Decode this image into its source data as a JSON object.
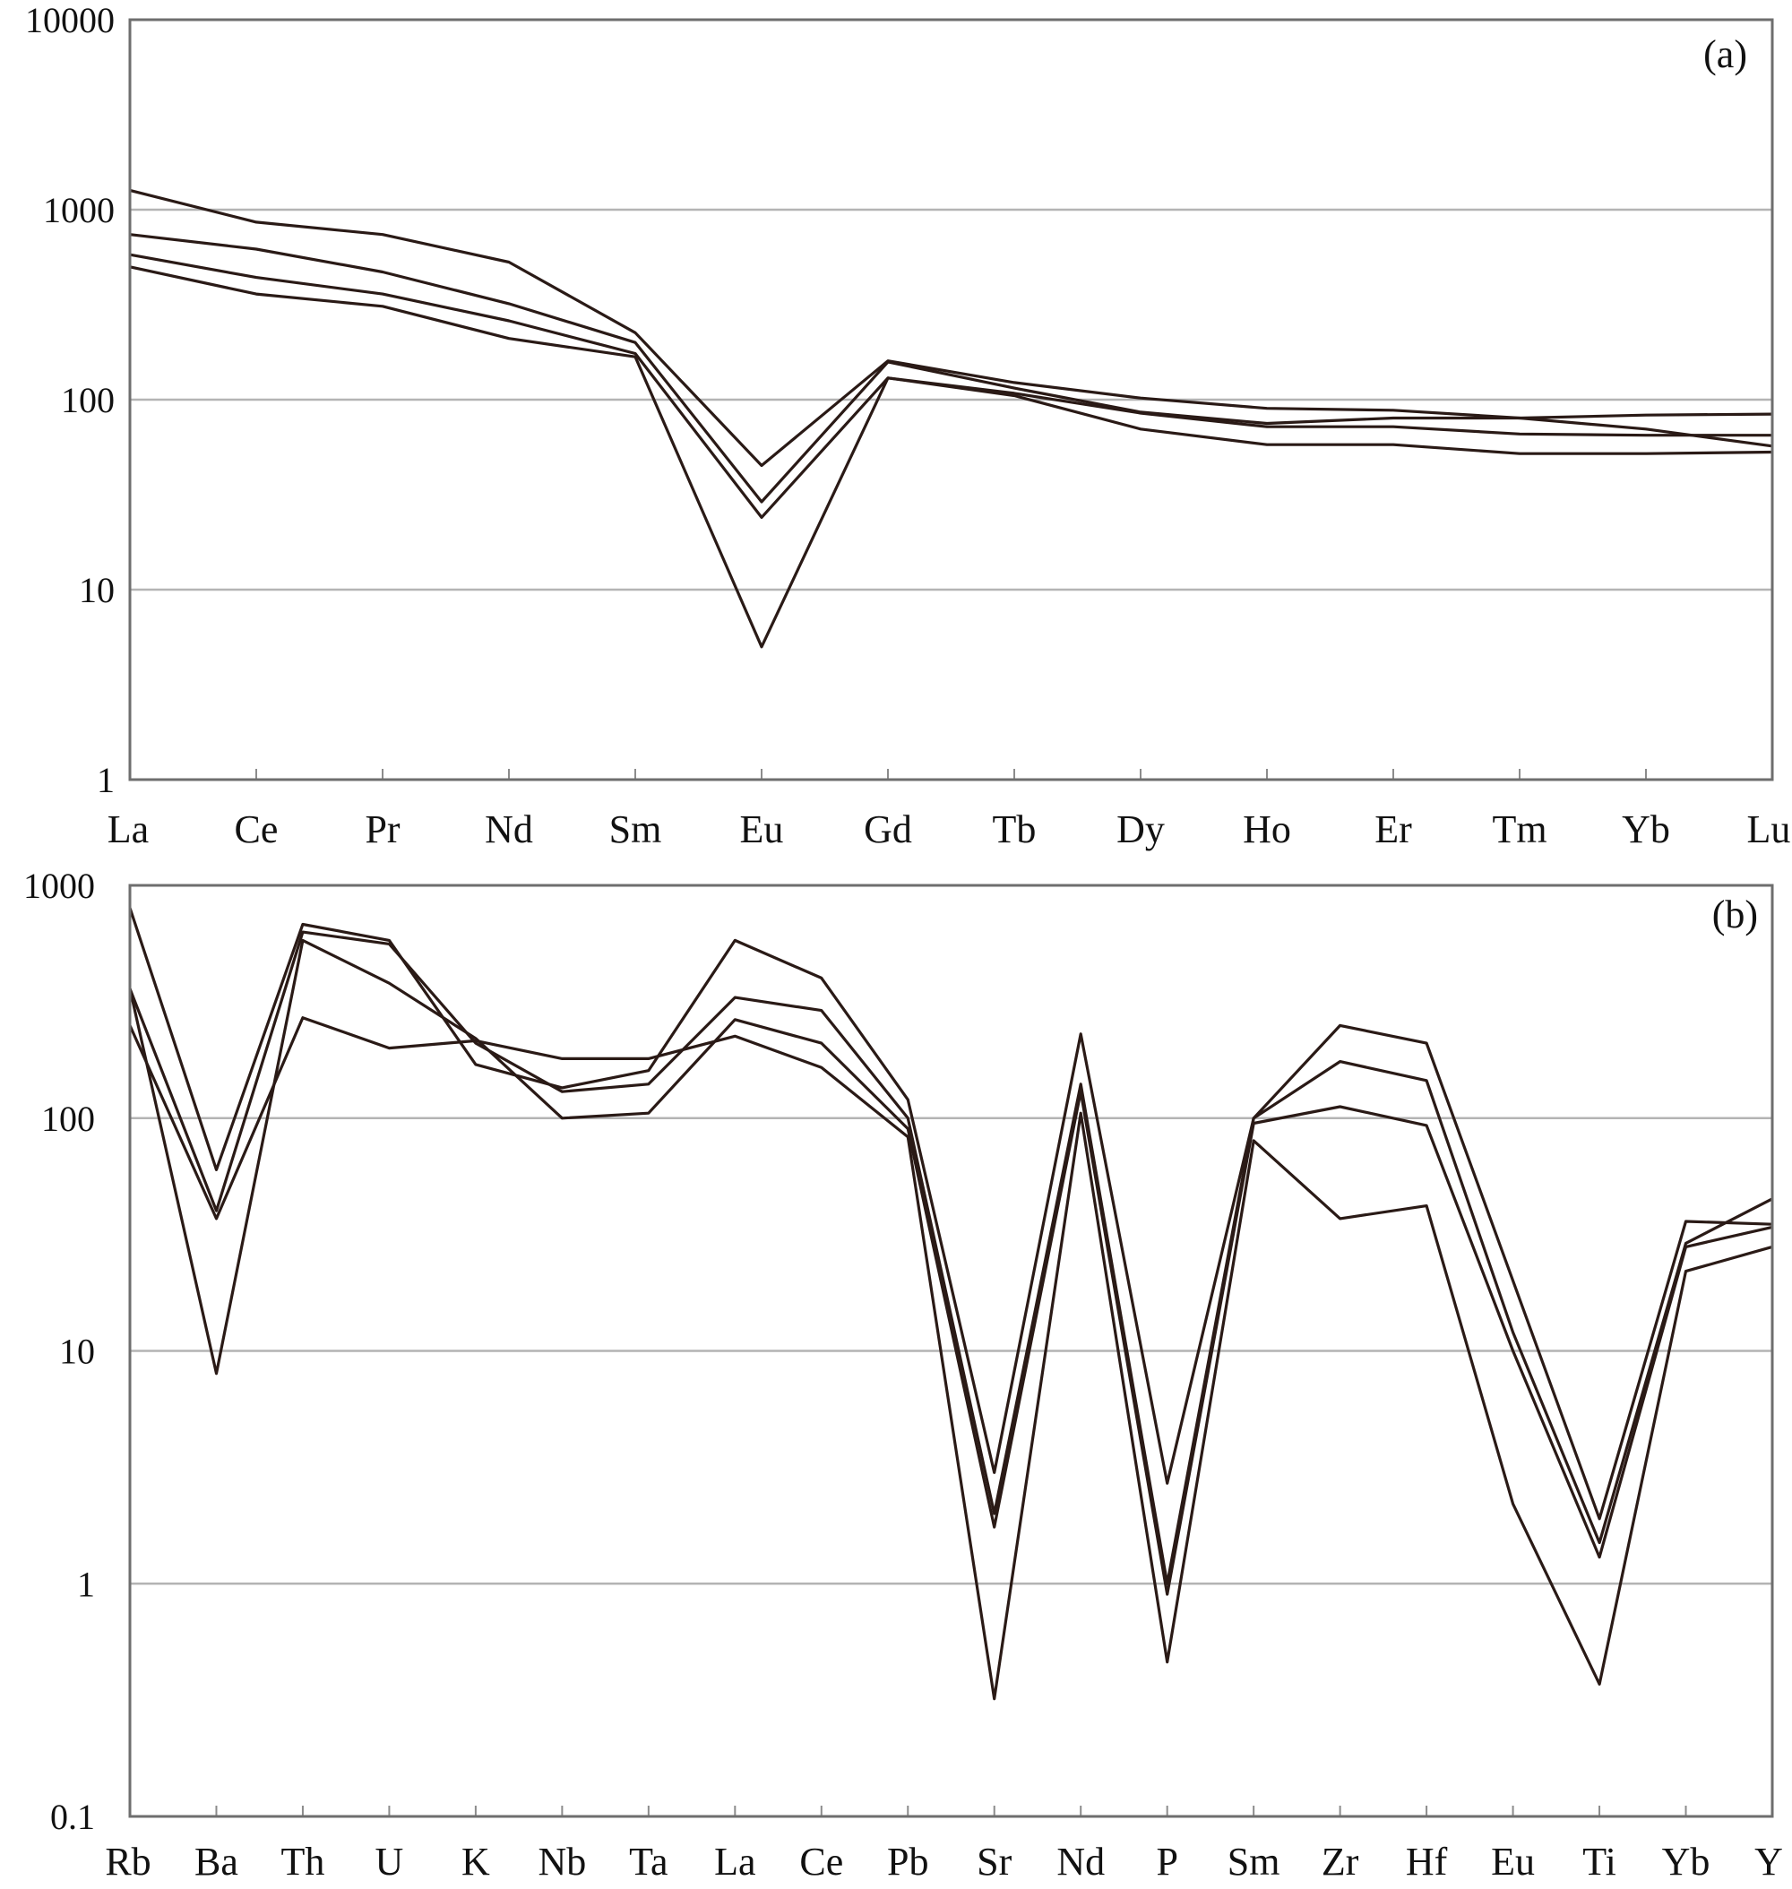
{
  "colors": {
    "line": "#2a1a16",
    "frame": "#6e6e6e",
    "grid": "#b4b4b4"
  },
  "chart_data": [
    {
      "type": "line",
      "panel_label": "(a)",
      "y_scale": "log",
      "ylim": [
        1,
        10000
      ],
      "y_ticks": [
        "10000",
        "1000",
        "100",
        "10",
        "1"
      ],
      "grid": "horizontal",
      "categories": [
        "La",
        "Ce",
        "Pr",
        "Nd",
        "Sm",
        "Eu",
        "Gd",
        "Tb",
        "Dy",
        "Ho",
        "Er",
        "Tm",
        "Yb",
        "Lu"
      ],
      "series": [
        {
          "values": [
            1265,
            860,
            740,
            530,
            225,
            45,
            160,
            123,
            102,
            90,
            88,
            80,
            70,
            57
          ]
        },
        {
          "values": [
            740,
            620,
            470,
            320,
            200,
            29,
            158,
            115,
            86,
            75,
            80,
            80,
            83,
            84
          ]
        },
        {
          "values": [
            580,
            440,
            360,
            260,
            175,
            24,
            130,
            108,
            85,
            72,
            72,
            66,
            65,
            65
          ]
        },
        {
          "values": [
            500,
            360,
            310,
            210,
            168,
            5,
            130,
            105,
            70,
            58,
            58,
            52,
            52,
            53
          ]
        }
      ]
    },
    {
      "type": "line",
      "panel_label": "(b)",
      "y_scale": "log",
      "ylim": [
        0.1,
        1000
      ],
      "y_ticks": [
        "1000",
        "100",
        "10",
        "1",
        "0.1"
      ],
      "grid": "horizontal",
      "categories": [
        "Rb",
        "Ba",
        "Th",
        "U",
        "K",
        "Nb",
        "Ta",
        "La",
        "Ce",
        "Pb",
        "Sr",
        "Nd",
        "P",
        "Sm",
        "Zr",
        "Hf",
        "Eu",
        "Ti",
        "Yb",
        "Y"
      ],
      "series": [
        {
          "values": [
            800,
            60,
            680,
            580,
            170,
            135,
            160,
            580,
            400,
            120,
            3.0,
            230,
            2.7,
            100,
            250,
            210,
            20,
            1.9,
            36,
            35
          ]
        },
        {
          "values": [
            360,
            40,
            630,
            560,
            210,
            130,
            140,
            330,
            290,
            100,
            2.0,
            140,
            1.0,
            100,
            175,
            145,
            12,
            1.5,
            29,
            45
          ]
        },
        {
          "values": [
            360,
            8,
            580,
            380,
            220,
            100,
            105,
            265,
            210,
            90,
            1.75,
            130,
            0.9,
            95,
            112,
            93,
            10,
            1.3,
            28,
            34
          ]
        },
        {
          "values": [
            250,
            37,
            270,
            200,
            215,
            180,
            180,
            225,
            165,
            83,
            0.32,
            105,
            0.46,
            80,
            37,
            42,
            2.2,
            0.37,
            22,
            28
          ]
        }
      ]
    }
  ]
}
